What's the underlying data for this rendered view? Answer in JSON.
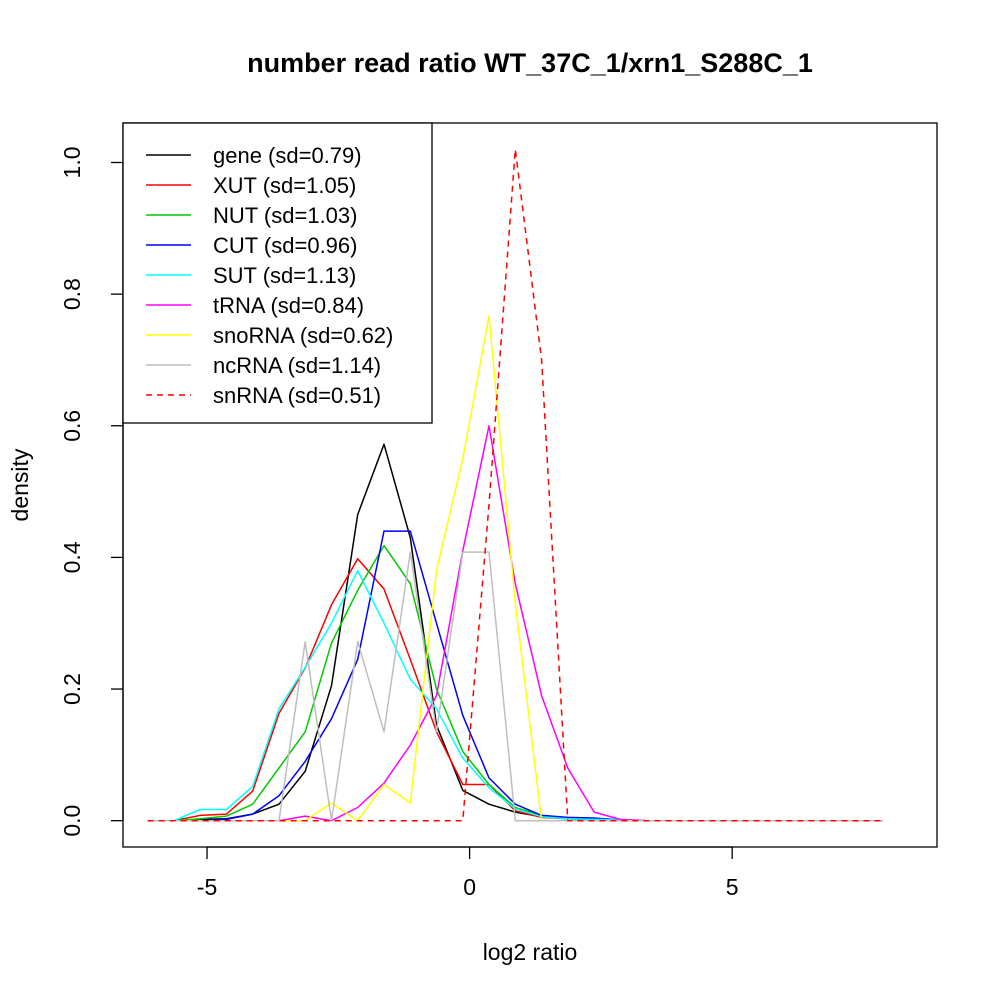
{
  "chart_data": {
    "type": "line",
    "title": "number read ratio WT_37C_1/xrn1_S288C_1",
    "xlabel": "log2 ratio",
    "ylabel": "density",
    "xlim": [
      -6.6,
      8.9
    ],
    "ylim": [
      -0.04,
      1.06
    ],
    "xticks": [
      -5,
      0,
      5
    ],
    "xtick_labels": [
      "-5",
      "0",
      "5"
    ],
    "yticks": [
      0.0,
      0.2,
      0.4,
      0.6,
      0.8,
      1.0
    ],
    "ytick_labels": [
      "0.0",
      "0.2",
      "0.4",
      "0.6",
      "0.8",
      "1.0"
    ],
    "legend_position": "top-left",
    "x": [
      -6.13,
      -5.63,
      -5.13,
      -4.63,
      -4.13,
      -3.63,
      -3.13,
      -2.63,
      -2.13,
      -1.63,
      -1.13,
      -0.63,
      -0.13,
      0.37,
      0.87,
      1.37,
      1.87,
      2.37,
      2.87,
      3.37,
      3.87,
      4.37,
      4.87,
      5.37,
      5.87,
      6.37,
      6.87,
      7.37,
      7.87
    ],
    "series": [
      {
        "name": "gene (sd=0.79)",
        "color": "#000000",
        "dash": false,
        "values": [
          0,
          0,
          0.002,
          0.003,
          0.01,
          0.025,
          0.075,
          0.205,
          0.465,
          0.572,
          0.43,
          0.145,
          0.046,
          0.025,
          0.013,
          0.006,
          0.003,
          0.002,
          0.001,
          0,
          0,
          0,
          0,
          0,
          0,
          0,
          0,
          0,
          0
        ]
      },
      {
        "name": "XUT (sd=1.05)",
        "color": "#ff0000",
        "dash": false,
        "values": [
          0,
          0,
          0.008,
          0.01,
          0.045,
          0.163,
          0.232,
          0.328,
          0.398,
          0.352,
          0.245,
          0.135,
          0.055,
          0.055,
          0.015,
          0.005,
          0.003,
          0.002,
          0.001,
          0,
          0,
          0,
          0,
          0,
          0,
          0,
          0,
          0,
          0
        ]
      },
      {
        "name": "NUT (sd=1.03)",
        "color": "#00cc00",
        "dash": false,
        "values": [
          0,
          0,
          0.003,
          0.007,
          0.025,
          0.08,
          0.135,
          0.27,
          0.35,
          0.418,
          0.36,
          0.2,
          0.105,
          0.055,
          0.02,
          0.008,
          0.004,
          0.002,
          0.001,
          0,
          0,
          0,
          0,
          0,
          0,
          0,
          0,
          0,
          0
        ]
      },
      {
        "name": "CUT (sd=0.96)",
        "color": "#0000ff",
        "dash": false,
        "values": [
          0,
          0,
          0,
          0.002,
          0.01,
          0.038,
          0.09,
          0.155,
          0.245,
          0.44,
          0.44,
          0.3,
          0.16,
          0.065,
          0.025,
          0.008,
          0.005,
          0.004,
          0.001,
          0,
          0,
          0,
          0,
          0,
          0,
          0,
          0,
          0,
          0
        ]
      },
      {
        "name": "SUT (sd=1.13)",
        "color": "#00ffff",
        "dash": false,
        "values": [
          0,
          0,
          0.017,
          0.017,
          0.052,
          0.17,
          0.233,
          0.3,
          0.38,
          0.3,
          0.215,
          0.17,
          0.095,
          0.05,
          0.018,
          0.006,
          0.003,
          0.002,
          0.001,
          0,
          0,
          0,
          0,
          0,
          0,
          0,
          0,
          0,
          0
        ]
      },
      {
        "name": "tRNA (sd=0.84)",
        "color": "#ff00ff",
        "dash": false,
        "values": [
          0,
          0,
          0,
          0,
          0,
          0,
          0.007,
          0,
          0.02,
          0.057,
          0.115,
          0.19,
          0.41,
          0.6,
          0.36,
          0.19,
          0.08,
          0.013,
          0.002,
          0,
          0,
          0,
          0,
          0,
          0,
          0,
          0,
          0,
          0
        ]
      },
      {
        "name": "snoRNA (sd=0.62)",
        "color": "#ffff00",
        "dash": false,
        "values": [
          0,
          0,
          0,
          0,
          0,
          0,
          0,
          0.027,
          0,
          0.055,
          0.027,
          0.38,
          0.55,
          0.767,
          0.33,
          0,
          0,
          0,
          0,
          0,
          0,
          0,
          0,
          0,
          0,
          0,
          0,
          0,
          0
        ]
      },
      {
        "name": "ncRNA (sd=1.14)",
        "color": "#bebebe",
        "dash": false,
        "values": [
          0,
          0,
          0,
          0,
          0,
          0,
          0.272,
          0,
          0.272,
          0.135,
          0.408,
          0.135,
          0.408,
          0.408,
          0,
          0,
          0,
          0,
          0,
          0,
          0,
          0,
          0,
          0,
          0,
          0,
          0,
          0,
          0
        ]
      },
      {
        "name": "snRNA (sd=0.51)",
        "color": "#ff0000",
        "dash": true,
        "values": [
          0,
          0,
          0,
          0,
          0,
          0,
          0,
          0,
          0,
          0,
          0,
          0,
          0,
          0.48,
          1.02,
          0.7,
          0,
          0,
          0,
          0,
          0,
          0,
          0,
          0,
          0,
          0,
          0,
          0,
          0
        ]
      }
    ]
  }
}
